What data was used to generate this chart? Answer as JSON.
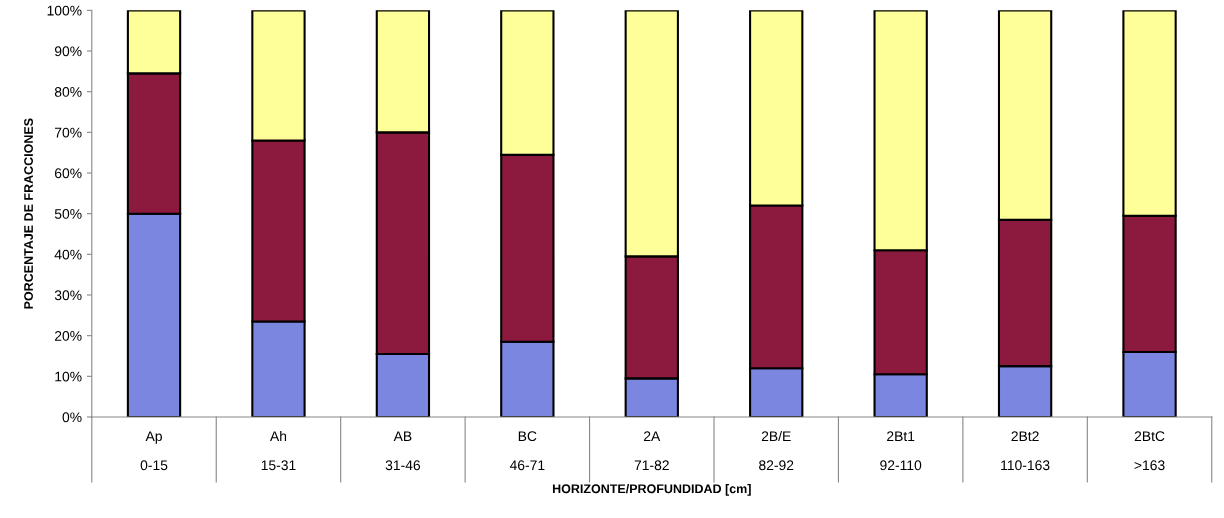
{
  "chart_data": {
    "type": "bar",
    "stacked": true,
    "xlabel": "HORIZONTE/PROFUNDIDAD [cm]",
    "ylabel": "PORCENTAJE DE FRACCIONES",
    "categories": [
      "Ap\n0-15",
      "Ah\n15-31",
      "AB\n31-46",
      "BC\n46-71",
      "2A\n71-82",
      "2B/E\n82-92",
      "2Bt1\n92-110",
      "2Bt2\n110-163",
      "2BtC\n>163"
    ],
    "series": [
      {
        "color": "#7b86e0",
        "values": [
          50,
          23.5,
          15.5,
          18.5,
          9.5,
          12,
          10.5,
          12.5,
          16
        ]
      },
      {
        "color": "#8b1a3e",
        "values": [
          34.5,
          44.5,
          54.5,
          46,
          30,
          40,
          30.5,
          36,
          33.5
        ]
      },
      {
        "color": "#ffff99",
        "values": [
          15.5,
          32,
          30,
          35.5,
          60.5,
          48,
          59,
          51.5,
          50.5
        ]
      }
    ],
    "ylim": [
      0,
      100
    ],
    "yticks": [
      {
        "value": 0,
        "label": "0%"
      },
      {
        "value": 10,
        "label": "10%"
      },
      {
        "value": 20,
        "label": "20%"
      },
      {
        "value": 30,
        "label": "30%"
      },
      {
        "value": 40,
        "label": "40%"
      },
      {
        "value": 50,
        "label": "50%"
      },
      {
        "value": 60,
        "label": "60%"
      },
      {
        "value": 70,
        "label": "70%"
      },
      {
        "value": 80,
        "label": "80%"
      },
      {
        "value": 90,
        "label": "90%"
      },
      {
        "value": 100,
        "label": "100%"
      }
    ],
    "grid": false,
    "legend": false
  }
}
